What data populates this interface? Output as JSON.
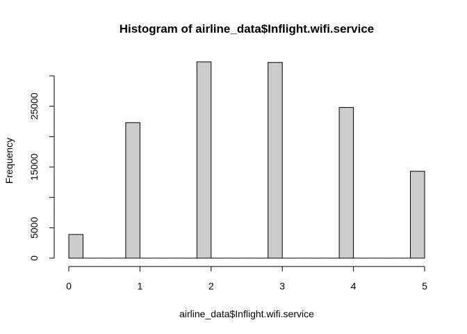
{
  "chart_data": {
    "type": "bar",
    "title": "Histogram of airline_data$Inflight.wifi.service",
    "xlabel": "airline_data$Inflight.wifi.service",
    "ylabel": "Frequency",
    "xlim": [
      0,
      5
    ],
    "ylim": [
      0,
      32000
    ],
    "bin_width": 0.2,
    "x_ticks": [
      0,
      1,
      2,
      3,
      4,
      5
    ],
    "y_ticks": [
      0,
      5000,
      10000,
      15000,
      20000,
      25000,
      30000
    ],
    "y_tick_labels": [
      "0",
      "5000",
      "",
      "15000",
      "",
      "25000",
      ""
    ],
    "bins": [
      {
        "x0": 0.0,
        "x1": 0.2,
        "value": 3900
      },
      {
        "x0": 0.2,
        "x1": 0.4,
        "value": 0
      },
      {
        "x0": 0.4,
        "x1": 0.6,
        "value": 0
      },
      {
        "x0": 0.6,
        "x1": 0.8,
        "value": 0
      },
      {
        "x0": 0.8,
        "x1": 1.0,
        "value": 22300
      },
      {
        "x0": 1.0,
        "x1": 1.2,
        "value": 0
      },
      {
        "x0": 1.2,
        "x1": 1.4,
        "value": 0
      },
      {
        "x0": 1.4,
        "x1": 1.6,
        "value": 0
      },
      {
        "x0": 1.6,
        "x1": 1.8,
        "value": 0
      },
      {
        "x0": 1.8,
        "x1": 2.0,
        "value": 32300
      },
      {
        "x0": 2.0,
        "x1": 2.2,
        "value": 0
      },
      {
        "x0": 2.2,
        "x1": 2.4,
        "value": 0
      },
      {
        "x0": 2.4,
        "x1": 2.6,
        "value": 0
      },
      {
        "x0": 2.6,
        "x1": 2.8,
        "value": 0
      },
      {
        "x0": 2.8,
        "x1": 3.0,
        "value": 32200
      },
      {
        "x0": 3.0,
        "x1": 3.2,
        "value": 0
      },
      {
        "x0": 3.2,
        "x1": 3.4,
        "value": 0
      },
      {
        "x0": 3.4,
        "x1": 3.6,
        "value": 0
      },
      {
        "x0": 3.6,
        "x1": 3.8,
        "value": 0
      },
      {
        "x0": 3.8,
        "x1": 4.0,
        "value": 24800
      },
      {
        "x0": 4.0,
        "x1": 4.2,
        "value": 0
      },
      {
        "x0": 4.2,
        "x1": 4.4,
        "value": 0
      },
      {
        "x0": 4.4,
        "x1": 4.6,
        "value": 0
      },
      {
        "x0": 4.6,
        "x1": 4.8,
        "value": 0
      },
      {
        "x0": 4.8,
        "x1": 5.0,
        "value": 14300
      }
    ],
    "colors": {
      "bar_fill": "#cccccc",
      "bar_stroke": "#000000"
    },
    "grid": false,
    "legend": "none"
  }
}
